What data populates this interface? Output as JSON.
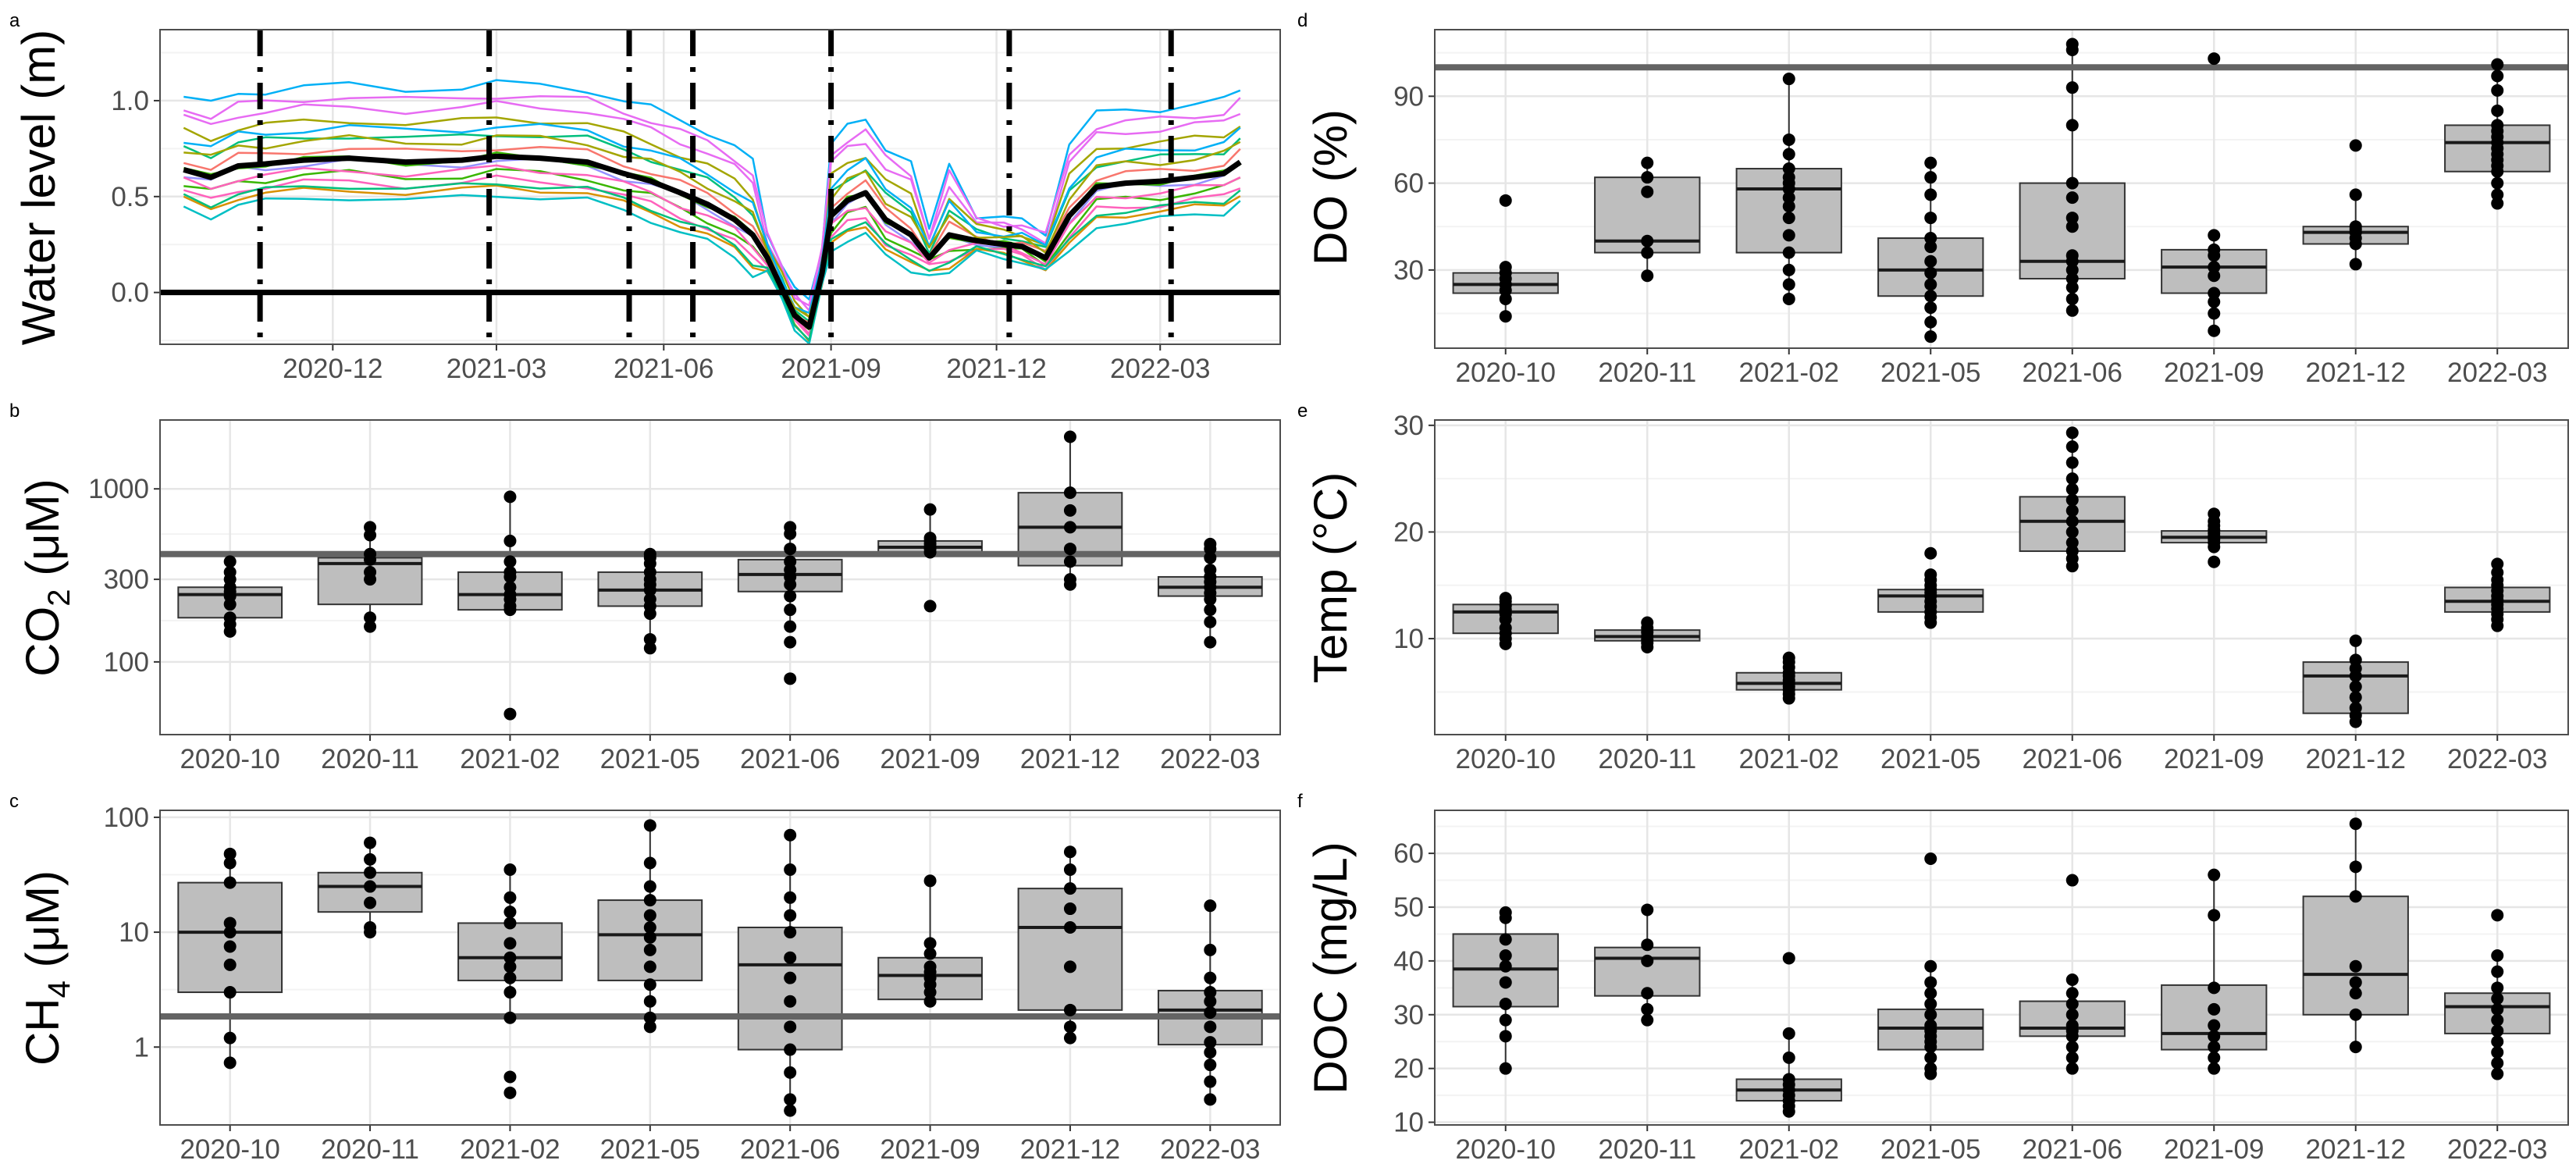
{
  "chart_data": [
    {
      "id": "a",
      "type": "line",
      "tag": "a",
      "ylabel": "Water level (m)",
      "x_ticks": [
        "2020-12",
        "2021-03",
        "2021-06",
        "2021-09",
        "2021-12",
        "2022-03"
      ],
      "y_ticks": [
        0.0,
        0.5,
        1.0
      ],
      "y_tick_labels": [
        "0.0",
        "0.5",
        "1.0"
      ],
      "ylim": [
        -0.27,
        1.37
      ],
      "xlim": [
        "2020-08-28",
        "2022-05-06"
      ],
      "grid": true,
      "reference_line": {
        "y": 0.0,
        "color": "#000000"
      },
      "sampling_dates": [
        "2020-10-22",
        "2021-02-25",
        "2021-05-13",
        "2021-06-17",
        "2021-09-01",
        "2021-12-08",
        "2022-03-07"
      ],
      "mean_series": {
        "name": "mean",
        "color": "#000000",
        "x": [
          "2020-09-10",
          "2020-09-25",
          "2020-10-10",
          "2020-10-25",
          "2020-11-15",
          "2020-12-10",
          "2021-01-10",
          "2021-02-10",
          "2021-03-01",
          "2021-03-25",
          "2021-04-20",
          "2021-05-10",
          "2021-05-25",
          "2021-06-10",
          "2021-06-25",
          "2021-07-10",
          "2021-07-20",
          "2021-07-28",
          "2021-08-05",
          "2021-08-12",
          "2021-08-20",
          "2021-08-27",
          "2021-09-01",
          "2021-09-10",
          "2021-09-20",
          "2021-10-01",
          "2021-10-15",
          "2021-10-25",
          "2021-11-05",
          "2021-11-20",
          "2021-12-05",
          "2021-12-15",
          "2021-12-28",
          "2022-01-10",
          "2022-01-25",
          "2022-02-10",
          "2022-03-01",
          "2022-03-20",
          "2022-04-05",
          "2022-04-14"
        ],
        "y": [
          0.64,
          0.6,
          0.66,
          0.67,
          0.69,
          0.7,
          0.68,
          0.69,
          0.71,
          0.7,
          0.68,
          0.62,
          0.58,
          0.52,
          0.46,
          0.38,
          0.3,
          0.18,
          0.02,
          -0.12,
          -0.18,
          0.1,
          0.4,
          0.48,
          0.52,
          0.38,
          0.3,
          0.18,
          0.3,
          0.27,
          0.25,
          0.24,
          0.18,
          0.4,
          0.55,
          0.57,
          0.58,
          0.6,
          0.62,
          0.68
        ]
      },
      "sensor_series_colors": [
        "#00b0f6",
        "#e76bf3",
        "#a3a500",
        "#00bf7d",
        "#f8766d",
        "#9590ff",
        "#39b600",
        "#ff62bc",
        "#d89000",
        "#00bfc4",
        "#e76bf3",
        "#00b0f6",
        "#a3a500",
        "#39b600",
        "#ff62bc",
        "#00bf7d"
      ],
      "sensor_offsets": [
        0.38,
        0.27,
        0.2,
        0.12,
        0.05,
        -0.02,
        -0.08,
        -0.12,
        -0.16,
        -0.2,
        0.32,
        0.16,
        0.1,
        0.0,
        -0.06,
        -0.14
      ]
    },
    {
      "id": "b",
      "type": "box",
      "tag": "b",
      "scale": "log",
      "ylabel_main": "CO",
      "ylabel_sub": "2",
      "ylabel_unit": " (μM)",
      "categories": [
        "2020-10",
        "2020-11",
        "2021-02",
        "2021-05",
        "2021-06",
        "2021-09",
        "2021-12",
        "2022-03"
      ],
      "y_ticks": [
        100,
        300,
        1000
      ],
      "y_tick_labels": [
        "100",
        "300",
        "1000"
      ],
      "ylim": [
        38,
        2500
      ],
      "grid": true,
      "reference_line": {
        "y": 420,
        "color": "#646464"
      },
      "boxes": [
        {
          "min": 150,
          "q1": 180,
          "median": 245,
          "q3": 270,
          "max": 380
        },
        {
          "min": 160,
          "q1": 215,
          "median": 370,
          "q3": 400,
          "max": 600
        },
        {
          "min": 200,
          "q1": 200,
          "median": 245,
          "q3": 330,
          "max": 900
        },
        {
          "min": 120,
          "q1": 210,
          "median": 260,
          "q3": 330,
          "max": 420
        },
        {
          "min": 150,
          "q1": 255,
          "median": 320,
          "q3": 390,
          "max": 600
        },
        {
          "min": 420,
          "q1": 430,
          "median": 460,
          "q3": 500,
          "max": 760
        },
        {
          "min": 280,
          "q1": 360,
          "median": 600,
          "q3": 950,
          "max": 2000
        },
        {
          "min": 130,
          "q1": 240,
          "median": 270,
          "q3": 310,
          "max": 480
        }
      ],
      "points": [
        [
          150,
          165,
          180,
          215,
          240,
          255,
          270,
          300,
          330,
          380
        ],
        [
          160,
          180,
          300,
          330,
          390,
          420,
          540,
          600
        ],
        [
          50,
          200,
          210,
          230,
          245,
          270,
          310,
          330,
          380,
          500,
          900
        ],
        [
          120,
          135,
          190,
          210,
          230,
          260,
          280,
          300,
          330,
          370,
          400,
          420
        ],
        [
          80,
          130,
          160,
          200,
          240,
          280,
          310,
          340,
          380,
          450,
          550,
          600
        ],
        [
          210,
          430,
          450,
          460,
          480,
          500,
          520,
          760
        ],
        [
          280,
          300,
          380,
          450,
          600,
          750,
          950,
          2000
        ],
        [
          130,
          170,
          200,
          230,
          250,
          270,
          290,
          310,
          340,
          400,
          450,
          480
        ]
      ]
    },
    {
      "id": "c",
      "type": "box",
      "tag": "c",
      "scale": "log",
      "ylabel_main": "CH",
      "ylabel_sub": "4",
      "ylabel_unit": " (μM)",
      "categories": [
        "2020-10",
        "2020-11",
        "2021-02",
        "2021-05",
        "2021-06",
        "2021-09",
        "2021-12",
        "2022-03"
      ],
      "y_ticks": [
        1,
        10,
        100
      ],
      "y_tick_labels": [
        "1",
        "10",
        "100"
      ],
      "ylim": [
        0.21,
        115
      ],
      "grid": true,
      "reference_line": {
        "y": 1.85,
        "color": "#646464"
      },
      "boxes": [
        {
          "min": 0.73,
          "q1": 3.0,
          "median": 10.0,
          "q3": 27,
          "max": 48
        },
        {
          "min": 10,
          "q1": 15,
          "median": 25,
          "q3": 33,
          "max": 60
        },
        {
          "min": 1.8,
          "q1": 3.8,
          "median": 6.0,
          "q3": 12,
          "max": 35
        },
        {
          "min": 1.5,
          "q1": 3.8,
          "median": 9.5,
          "q3": 19,
          "max": 85
        },
        {
          "min": 0.28,
          "q1": 0.95,
          "median": 5.2,
          "q3": 11,
          "max": 70
        },
        {
          "min": 2.5,
          "q1": 2.6,
          "median": 4.2,
          "q3": 6.0,
          "max": 28
        },
        {
          "min": 1.2,
          "q1": 2.1,
          "median": 11,
          "q3": 24,
          "max": 50
        },
        {
          "min": 0.35,
          "q1": 1.05,
          "median": 2.1,
          "q3": 3.1,
          "max": 17
        }
      ],
      "points": [
        [
          0.73,
          1.2,
          3.0,
          5.2,
          7.5,
          10,
          12,
          27,
          40,
          48
        ],
        [
          10,
          11,
          18,
          25,
          33,
          43,
          60
        ],
        [
          0.4,
          0.55,
          1.8,
          3.0,
          4.0,
          5.0,
          6.0,
          8.0,
          12,
          15,
          20,
          35
        ],
        [
          1.5,
          1.8,
          2.5,
          3.5,
          5.0,
          7.0,
          9.0,
          11,
          14,
          19,
          25,
          40,
          85
        ],
        [
          0.28,
          0.35,
          0.6,
          0.95,
          1.5,
          2.5,
          4.0,
          6.0,
          10,
          14,
          20,
          35,
          70
        ],
        [
          2.5,
          3.0,
          3.5,
          4.0,
          4.5,
          5.0,
          6.5,
          8.0,
          28
        ],
        [
          1.2,
          1.5,
          2.1,
          5.0,
          11,
          16,
          24,
          35,
          50
        ],
        [
          0.35,
          0.5,
          0.7,
          0.9,
          1.1,
          1.5,
          2.0,
          2.5,
          3.0,
          4.0,
          7.0,
          17
        ]
      ]
    },
    {
      "id": "d",
      "type": "box",
      "tag": "d",
      "ylabel": "DO (%)",
      "categories": [
        "2020-10",
        "2020-11",
        "2021-02",
        "2021-05",
        "2021-06",
        "2021-09",
        "2021-12",
        "2022-03"
      ],
      "y_ticks": [
        30,
        60,
        90
      ],
      "y_tick_labels": [
        "30",
        "60",
        "90"
      ],
      "ylim": [
        3,
        113
      ],
      "grid": true,
      "reference_line": {
        "y": 100,
        "color": "#646464"
      },
      "boxes": [
        {
          "min": 14,
          "q1": 22,
          "median": 25,
          "q3": 29,
          "max": 31
        },
        {
          "min": 28,
          "q1": 36,
          "median": 40,
          "q3": 62,
          "max": 67
        },
        {
          "min": 20,
          "q1": 36,
          "median": 58,
          "q3": 65,
          "max": 96
        },
        {
          "min": 7,
          "q1": 21,
          "median": 30,
          "q3": 41,
          "max": 67
        },
        {
          "min": 16,
          "q1": 27,
          "median": 33,
          "q3": 60,
          "max": 108
        },
        {
          "min": 9,
          "q1": 22,
          "median": 31,
          "q3": 37,
          "max": 42
        },
        {
          "min": 32,
          "q1": 39,
          "median": 43,
          "q3": 45,
          "max": 56
        },
        {
          "min": 53,
          "q1": 64,
          "median": 74,
          "q3": 80,
          "max": 101
        }
      ],
      "points": [
        [
          14,
          20,
          23,
          25,
          27,
          29,
          31,
          54
        ],
        [
          28,
          36,
          40,
          57,
          62,
          67
        ],
        [
          20,
          25,
          30,
          36,
          42,
          48,
          52,
          55,
          58,
          60,
          62,
          65,
          70,
          75,
          96
        ],
        [
          7,
          12,
          17,
          21,
          25,
          29,
          33,
          38,
          41,
          48,
          56,
          62,
          67
        ],
        [
          16,
          20,
          24,
          27,
          30,
          33,
          35,
          45,
          48,
          55,
          60,
          80,
          93,
          106,
          108
        ],
        [
          9,
          15,
          19,
          22,
          28,
          31,
          35,
          37,
          42,
          103
        ],
        [
          32,
          39,
          41,
          43,
          44,
          45,
          56,
          73
        ],
        [
          53,
          56,
          60,
          64,
          66,
          68,
          70,
          72,
          74,
          76,
          78,
          80,
          85,
          92,
          97,
          101
        ]
      ]
    },
    {
      "id": "e",
      "type": "box",
      "tag": "e",
      "ylabel": "Temp (°C)",
      "categories": [
        "2020-10",
        "2020-11",
        "2021-02",
        "2021-05",
        "2021-06",
        "2021-09",
        "2021-12",
        "2022-03"
      ],
      "y_ticks": [
        10,
        20,
        30
      ],
      "y_tick_labels": [
        "10",
        "20",
        "30"
      ],
      "ylim": [
        1.0,
        30.5
      ],
      "grid": true,
      "boxes": [
        {
          "min": 9.5,
          "q1": 10.5,
          "median": 12.5,
          "q3": 13.2,
          "max": 13.8
        },
        {
          "min": 9.2,
          "q1": 9.8,
          "median": 10.2,
          "q3": 10.8,
          "max": 11.5
        },
        {
          "min": 4.4,
          "q1": 5.2,
          "median": 5.8,
          "q3": 6.8,
          "max": 8.2
        },
        {
          "min": 11.5,
          "q1": 12.5,
          "median": 14.0,
          "q3": 14.6,
          "max": 16.0
        },
        {
          "min": 16.8,
          "q1": 18.2,
          "median": 21.0,
          "q3": 23.3,
          "max": 29.3
        },
        {
          "min": 18.6,
          "q1": 19.0,
          "median": 19.5,
          "q3": 20.1,
          "max": 20.8
        },
        {
          "min": 2.2,
          "q1": 3.0,
          "median": 6.5,
          "q3": 7.8,
          "max": 9.8
        },
        {
          "min": 11.2,
          "q1": 12.5,
          "median": 13.5,
          "q3": 14.8,
          "max": 17.0
        }
      ],
      "points": [
        [
          9.5,
          10.0,
          10.5,
          11.0,
          11.8,
          12.3,
          12.7,
          13.1,
          13.5,
          13.8
        ],
        [
          9.2,
          9.6,
          9.9,
          10.2,
          10.6,
          11.0,
          11.5
        ],
        [
          4.4,
          4.8,
          5.2,
          5.5,
          5.8,
          6.1,
          6.5,
          6.8,
          7.3,
          7.8,
          8.2
        ],
        [
          11.5,
          12.0,
          12.5,
          13.0,
          13.5,
          14.0,
          14.3,
          14.6,
          15.0,
          15.5,
          16.0,
          18.0
        ],
        [
          16.8,
          17.5,
          18.2,
          19.0,
          20.0,
          21.0,
          22.0,
          23.0,
          24.0,
          25.0,
          26.5,
          28.0,
          29.3
        ],
        [
          17.2,
          18.6,
          19.0,
          19.3,
          19.6,
          19.9,
          20.2,
          20.6,
          21.0,
          21.7
        ],
        [
          2.2,
          2.8,
          3.5,
          4.5,
          5.5,
          6.5,
          7.2,
          8.0,
          9.8
        ],
        [
          11.2,
          11.8,
          12.3,
          12.8,
          13.2,
          13.6,
          14.0,
          14.5,
          15.0,
          15.5,
          16.2,
          17.0
        ]
      ]
    },
    {
      "id": "f",
      "type": "box",
      "tag": "f",
      "ylabel": "DOC (mg/L)",
      "categories": [
        "2020-10",
        "2020-11",
        "2021-02",
        "2021-05",
        "2021-06",
        "2021-09",
        "2021-12",
        "2022-03"
      ],
      "y_ticks": [
        10,
        20,
        30,
        40,
        50,
        60
      ],
      "y_tick_labels": [
        "10",
        "20",
        "30",
        "40",
        "50",
        "60"
      ],
      "ylim": [
        9.5,
        68
      ],
      "grid": true,
      "boxes": [
        {
          "min": 20,
          "q1": 31.5,
          "median": 38.5,
          "q3": 45,
          "max": 49
        },
        {
          "min": 29,
          "q1": 33.5,
          "median": 40.5,
          "q3": 42.5,
          "max": 49.5
        },
        {
          "min": 12,
          "q1": 14,
          "median": 16,
          "q3": 18,
          "max": 26.5
        },
        {
          "min": 19,
          "q1": 23.5,
          "median": 27.5,
          "q3": 31,
          "max": 39
        },
        {
          "min": 20,
          "q1": 26,
          "median": 27.5,
          "q3": 32.5,
          "max": 36.5
        },
        {
          "min": 20,
          "q1": 23.5,
          "median": 26.5,
          "q3": 35.5,
          "max": 56
        },
        {
          "min": 24,
          "q1": 30,
          "median": 37.5,
          "q3": 52,
          "max": 65.5
        },
        {
          "min": 19,
          "q1": 26.5,
          "median": 31.5,
          "q3": 34,
          "max": 41
        }
      ],
      "points": [
        [
          20,
          26,
          29,
          32,
          36,
          39,
          41,
          44,
          48,
          49
        ],
        [
          29,
          31,
          34,
          40,
          43,
          49.5
        ],
        [
          12,
          13,
          14,
          15,
          16,
          17,
          18,
          22,
          26.5,
          40.5
        ],
        [
          19,
          20,
          22,
          24,
          25,
          26,
          27,
          28,
          30,
          32,
          34,
          36,
          39,
          59
        ],
        [
          20,
          22,
          24,
          26,
          27,
          28,
          30,
          32,
          34,
          36.5,
          55
        ],
        [
          20,
          22,
          24,
          26,
          28,
          31,
          35,
          48.5,
          56
        ],
        [
          24,
          30,
          34,
          36,
          39,
          52,
          57.5,
          65.5
        ],
        [
          19,
          21,
          23,
          25,
          27,
          29,
          31,
          33,
          35,
          38,
          41,
          48.5
        ]
      ]
    }
  ]
}
